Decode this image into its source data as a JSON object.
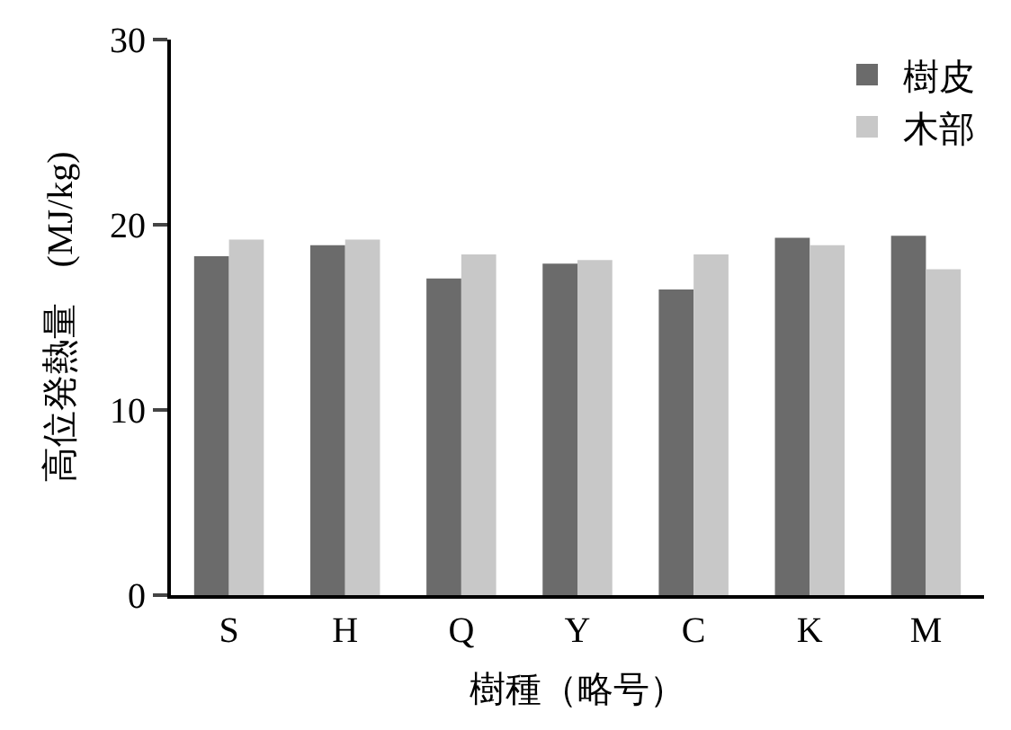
{
  "chart_data": {
    "type": "bar",
    "xlabel": "樹種（略号）",
    "ylabel": "高位発熱量　(MJ/kg)",
    "categories": [
      "S",
      "H",
      "Q",
      "Y",
      "C",
      "K",
      "M"
    ],
    "series": [
      {
        "name": "樹皮",
        "color": "#6b6b6b",
        "values": [
          18.3,
          18.9,
          17.1,
          17.9,
          16.5,
          19.3,
          19.4
        ]
      },
      {
        "name": "木部",
        "color": "#c8c8c8",
        "values": [
          19.2,
          19.2,
          18.4,
          18.1,
          18.4,
          18.9,
          17.6
        ]
      }
    ],
    "ylim": [
      0,
      30
    ],
    "yticks": [
      0,
      10,
      20,
      30
    ],
    "legend": "top right"
  }
}
